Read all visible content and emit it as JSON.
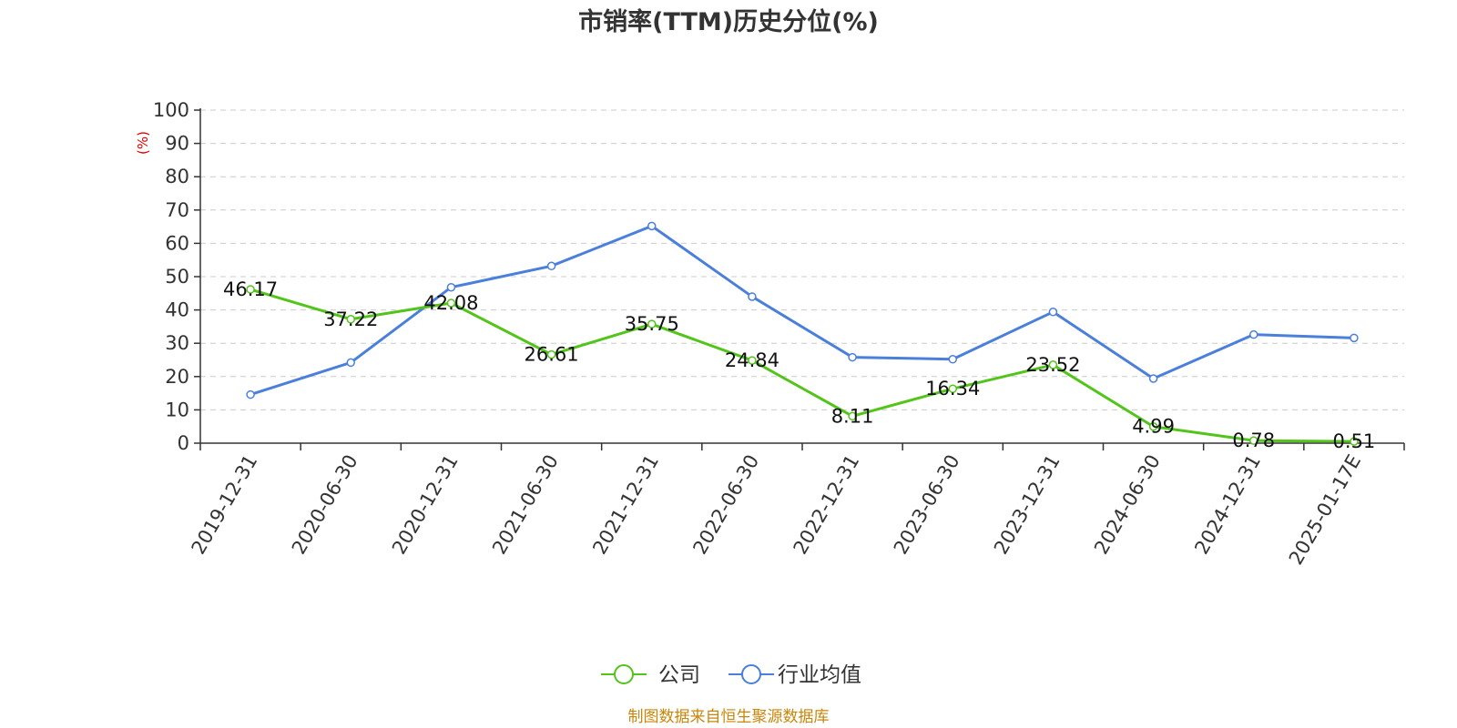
{
  "chart_data": {
    "type": "line",
    "title": "市销率(TTM)历史分位(%)",
    "ylabel": "(%)",
    "ylim": [
      0,
      100
    ],
    "yticks": [
      0,
      10,
      20,
      30,
      40,
      50,
      60,
      70,
      80,
      90,
      100
    ],
    "grid": true,
    "legend_position": "bottom",
    "categories": [
      "2019-12-31",
      "2020-06-30",
      "2020-12-31",
      "2021-06-30",
      "2021-12-31",
      "2022-06-30",
      "2022-12-31",
      "2023-06-30",
      "2023-12-31",
      "2024-06-30",
      "2024-12-31",
      "2025-01-17E"
    ],
    "series": [
      {
        "name": "公司",
        "color": "#52c41a",
        "values": [
          46.17,
          37.22,
          42.08,
          26.61,
          35.75,
          24.84,
          8.11,
          16.34,
          23.52,
          4.99,
          0.78,
          0.51
        ],
        "labels": [
          "46.17",
          "37.22",
          "42.08",
          "26.61",
          "35.75",
          "24.84",
          "8.11",
          "16.34",
          "23.52",
          "4.99",
          "0.78",
          "0.51"
        ]
      },
      {
        "name": "行业均值",
        "color": "#4a7fdb",
        "values": [
          14.6,
          24.2,
          46.8,
          53.2,
          65.2,
          44.0,
          25.8,
          25.2,
          39.4,
          19.4,
          32.6,
          31.6
        ]
      }
    ],
    "source": "制图数据来自恒生聚源数据库"
  },
  "colors": {
    "axis_unit": "#e00000",
    "source": "#c8860a",
    "grid": "#cccccc",
    "axis": "#333333"
  }
}
